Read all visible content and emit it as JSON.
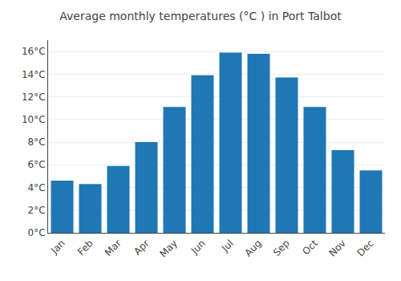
{
  "chart_data": {
    "type": "bar",
    "title": "Average monthly temperatures (°C ) in Port Talbot",
    "categories": [
      "Jan",
      "Feb",
      "Mar",
      "Apr",
      "May",
      "Jun",
      "Jul",
      "Aug",
      "Sep",
      "Oct",
      "Nov",
      "Dec"
    ],
    "values": [
      4.6,
      4.3,
      5.9,
      8.0,
      11.1,
      13.9,
      15.9,
      15.8,
      13.7,
      11.1,
      7.3,
      5.5
    ],
    "ylim": [
      0,
      17
    ],
    "yticks": [
      {
        "value": 0,
        "label": "0°C"
      },
      {
        "value": 2,
        "label": "2°C"
      },
      {
        "value": 4,
        "label": "4°C"
      },
      {
        "value": 6,
        "label": "6°C"
      },
      {
        "value": 8,
        "label": "8°C"
      },
      {
        "value": 10,
        "label": "10°C"
      },
      {
        "value": 12,
        "label": "12°C"
      },
      {
        "value": 14,
        "label": "14°C"
      },
      {
        "value": 16,
        "label": "16°C"
      }
    ],
    "grid": true
  }
}
